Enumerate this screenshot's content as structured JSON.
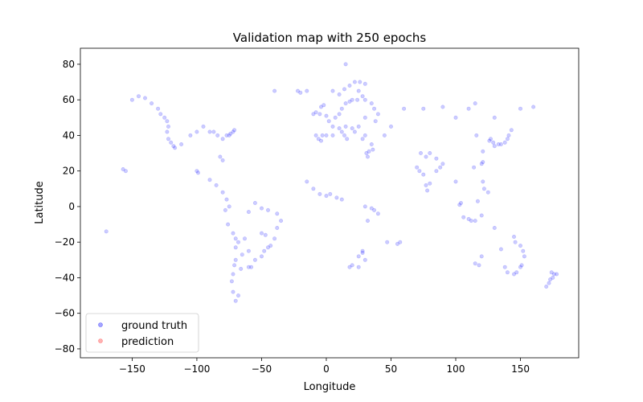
{
  "chart_data": {
    "type": "scatter",
    "title": "Validation map with 250 epochs",
    "xlabel": "Longitude",
    "ylabel": "Latitude",
    "xlim": [
      -190,
      195
    ],
    "ylim": [
      -85,
      89
    ],
    "xticks": [
      -150,
      -100,
      -50,
      0,
      50,
      100,
      150
    ],
    "yticks": [
      -80,
      -60,
      -40,
      -20,
      0,
      20,
      40,
      60,
      80
    ],
    "grid": false,
    "legend_position": "lower-left",
    "series": [
      {
        "name": "ground truth",
        "color": "#0000ff",
        "opacity": 0.2,
        "points": [
          [
            -150,
            60
          ],
          [
            -145,
            62
          ],
          [
            -140,
            61
          ],
          [
            -135,
            58
          ],
          [
            -130,
            55
          ],
          [
            -128,
            52
          ],
          [
            -125,
            50
          ],
          [
            -123,
            48
          ],
          [
            -122,
            45
          ],
          [
            -123,
            42
          ],
          [
            -122,
            38
          ],
          [
            -120,
            36
          ],
          [
            -118,
            34
          ],
          [
            -117,
            33
          ],
          [
            -112,
            35
          ],
          [
            -105,
            40
          ],
          [
            -100,
            42
          ],
          [
            -95,
            45
          ],
          [
            -90,
            42
          ],
          [
            -87,
            42
          ],
          [
            -84,
            40
          ],
          [
            -80,
            38
          ],
          [
            -77,
            40
          ],
          [
            -75,
            40
          ],
          [
            -74,
            41
          ],
          [
            -72,
            42
          ],
          [
            -71,
            43
          ],
          [
            -80,
            26
          ],
          [
            -82,
            28
          ],
          [
            -155,
            20
          ],
          [
            -157,
            21
          ],
          [
            -170,
            -14
          ],
          [
            -100,
            20
          ],
          [
            -99,
            19
          ],
          [
            -90,
            15
          ],
          [
            -85,
            12
          ],
          [
            -80,
            8
          ],
          [
            -77,
            4
          ],
          [
            -75,
            0
          ],
          [
            -78,
            -2
          ],
          [
            -76,
            -10
          ],
          [
            -72,
            -15
          ],
          [
            -70,
            -18
          ],
          [
            -70,
            -23
          ],
          [
            -70,
            -30
          ],
          [
            -71,
            -33
          ],
          [
            -72,
            -38
          ],
          [
            -73,
            -42
          ],
          [
            -72,
            -48
          ],
          [
            -70,
            -53
          ],
          [
            -68,
            -50
          ],
          [
            -66,
            -35
          ],
          [
            -60,
            -34
          ],
          [
            -58,
            -34
          ],
          [
            -55,
            -30
          ],
          [
            -50,
            -28
          ],
          [
            -48,
            -25
          ],
          [
            -45,
            -23
          ],
          [
            -43,
            -22
          ],
          [
            -40,
            -18
          ],
          [
            -38,
            -12
          ],
          [
            -35,
            -8
          ],
          [
            -38,
            -4
          ],
          [
            -45,
            -2
          ],
          [
            -50,
            -1
          ],
          [
            -55,
            2
          ],
          [
            -60,
            -3
          ],
          [
            -50,
            -15
          ],
          [
            -47,
            -16
          ],
          [
            -60,
            -25
          ],
          [
            -65,
            -27
          ],
          [
            -68,
            -20
          ],
          [
            -63,
            -18
          ],
          [
            -10,
            52
          ],
          [
            -8,
            53
          ],
          [
            -5,
            52
          ],
          [
            -4,
            56
          ],
          [
            -2,
            57
          ],
          [
            0,
            51
          ],
          [
            2,
            48
          ],
          [
            5,
            45
          ],
          [
            7,
            50
          ],
          [
            10,
            52
          ],
          [
            12,
            55
          ],
          [
            15,
            58
          ],
          [
            18,
            59
          ],
          [
            20,
            60
          ],
          [
            24,
            60
          ],
          [
            25,
            65
          ],
          [
            28,
            62
          ],
          [
            30,
            60
          ],
          [
            35,
            58
          ],
          [
            37,
            55
          ],
          [
            40,
            52
          ],
          [
            38,
            48
          ],
          [
            30,
            50
          ],
          [
            25,
            45
          ],
          [
            22,
            42
          ],
          [
            20,
            44
          ],
          [
            15,
            45
          ],
          [
            12,
            42
          ],
          [
            10,
            44
          ],
          [
            14,
            40
          ],
          [
            16,
            38
          ],
          [
            5,
            40
          ],
          [
            0,
            40
          ],
          [
            -3,
            40
          ],
          [
            -6,
            38
          ],
          [
            -8,
            40
          ],
          [
            -4,
            37
          ],
          [
            30,
            40
          ],
          [
            28,
            38
          ],
          [
            35,
            35
          ],
          [
            33,
            31
          ],
          [
            31,
            30
          ],
          [
            32,
            28
          ],
          [
            36,
            32
          ],
          [
            45,
            40
          ],
          [
            50,
            45
          ],
          [
            60,
            55
          ],
          [
            75,
            55
          ],
          [
            5,
            65
          ],
          [
            10,
            63
          ],
          [
            14,
            66
          ],
          [
            18,
            68
          ],
          [
            22,
            70
          ],
          [
            26,
            70
          ],
          [
            30,
            69
          ],
          [
            15,
            80
          ],
          [
            -20,
            64
          ],
          [
            -22,
            65
          ],
          [
            -15,
            65
          ],
          [
            -40,
            65
          ],
          [
            -15,
            14
          ],
          [
            -10,
            10
          ],
          [
            -5,
            7
          ],
          [
            0,
            6
          ],
          [
            3,
            7
          ],
          [
            8,
            5
          ],
          [
            12,
            4
          ],
          [
            30,
            0
          ],
          [
            35,
            -1
          ],
          [
            37,
            -2
          ],
          [
            40,
            -4
          ],
          [
            32,
            -8
          ],
          [
            28,
            -25
          ],
          [
            28,
            -26
          ],
          [
            25,
            -28
          ],
          [
            30,
            -30
          ],
          [
            20,
            -33
          ],
          [
            18,
            -34
          ],
          [
            25,
            -34
          ],
          [
            47,
            -20
          ],
          [
            57,
            -20
          ],
          [
            55,
            -21
          ],
          [
            70,
            22
          ],
          [
            72,
            20
          ],
          [
            75,
            18
          ],
          [
            77,
            12
          ],
          [
            78,
            9
          ],
          [
            80,
            13
          ],
          [
            85,
            20
          ],
          [
            88,
            22
          ],
          [
            90,
            24
          ],
          [
            73,
            30
          ],
          [
            77,
            28
          ],
          [
            80,
            30
          ],
          [
            85,
            27
          ],
          [
            100,
            14
          ],
          [
            103,
            1
          ],
          [
            104,
            2
          ],
          [
            106,
            -6
          ],
          [
            110,
            -7
          ],
          [
            112,
            -8
          ],
          [
            115,
            -8
          ],
          [
            117,
            3
          ],
          [
            120,
            -5
          ],
          [
            121,
            14
          ],
          [
            122,
            10
          ],
          [
            125,
            8
          ],
          [
            120,
            24
          ],
          [
            121,
            25
          ],
          [
            114,
            22
          ],
          [
            116,
            40
          ],
          [
            121,
            31
          ],
          [
            126,
            37
          ],
          [
            129,
            36
          ],
          [
            127,
            38
          ],
          [
            130,
            34
          ],
          [
            133,
            35
          ],
          [
            135,
            35
          ],
          [
            138,
            36
          ],
          [
            140,
            38
          ],
          [
            141,
            40
          ],
          [
            143,
            43
          ],
          [
            100,
            50
          ],
          [
            110,
            55
          ],
          [
            130,
            50
          ],
          [
            150,
            55
          ],
          [
            160,
            56
          ],
          [
            115,
            58
          ],
          [
            90,
            56
          ],
          [
            115,
            -32
          ],
          [
            118,
            -33
          ],
          [
            120,
            -28
          ],
          [
            130,
            -12
          ],
          [
            138,
            -34
          ],
          [
            140,
            -37
          ],
          [
            145,
            -38
          ],
          [
            147,
            -37
          ],
          [
            150,
            -34
          ],
          [
            151,
            -33
          ],
          [
            153,
            -28
          ],
          [
            152,
            -25
          ],
          [
            146,
            -20
          ],
          [
            145,
            -17
          ],
          [
            150,
            -22
          ],
          [
            135,
            -24
          ],
          [
            173,
            -41
          ],
          [
            172,
            -43
          ],
          [
            174,
            -37
          ],
          [
            175,
            -40
          ],
          [
            176,
            -38
          ],
          [
            178,
            -38
          ],
          [
            170,
            -45
          ]
        ]
      },
      {
        "name": "prediction",
        "color": "#ff0000",
        "opacity": 0.15,
        "points": []
      }
    ]
  }
}
